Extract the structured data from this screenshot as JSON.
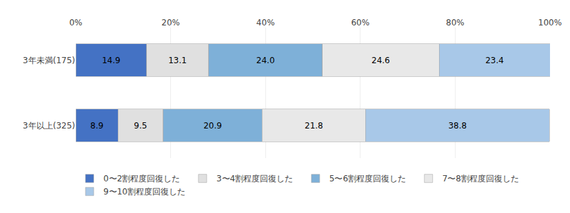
{
  "chart_data": {
    "type": "bar",
    "orientation": "horizontal",
    "stacked": true,
    "data_labels": true,
    "grid": true,
    "legend": "bottom",
    "categories": [
      "3年以上(325)",
      "3年未満(175)"
    ],
    "series": [
      {
        "name": "0〜2割程度回復した",
        "color": "#4472C4",
        "values": [
          8.9,
          14.9
        ]
      },
      {
        "name": "3〜4割程度回復した",
        "color": "#E0E0E0",
        "values": [
          9.5,
          13.1
        ]
      },
      {
        "name": "5〜6割程度回復した",
        "color": "#7EB0D8",
        "values": [
          20.9,
          24.0
        ],
        "value_labels": [
          "20.9",
          "24.0"
        ]
      },
      {
        "name": "7〜8割程度回復した",
        "color": "#E8E8E8",
        "values": [
          21.8,
          24.6
        ]
      },
      {
        "name": "9〜10割程度回復した",
        "color": "#A8C8E8",
        "values": [
          38.8,
          23.4
        ]
      }
    ],
    "xlim": [
      0,
      100
    ],
    "xticks": [
      {
        "value": 0,
        "label": "0%"
      },
      {
        "value": 20,
        "label": "20%"
      },
      {
        "value": 40,
        "label": "40%"
      },
      {
        "value": 60,
        "label": "60%"
      },
      {
        "value": 80,
        "label": "80%"
      },
      {
        "value": 100,
        "label": "100%"
      }
    ]
  }
}
